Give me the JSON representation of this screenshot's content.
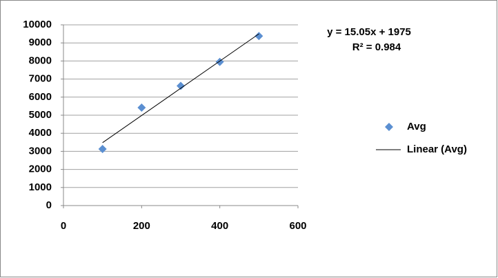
{
  "chart_data": {
    "type": "scatter",
    "annotations": [
      "y = 15.05x + 1975",
      "R² = 0.984"
    ],
    "series": [
      {
        "name": "Avg",
        "type": "scatter",
        "marker": "diamond",
        "color": "#5b8fd1",
        "x": [
          100,
          200,
          300,
          400,
          500
        ],
        "values": [
          3130,
          5420,
          6620,
          7950,
          9380
        ]
      },
      {
        "name": "Linear (Avg)",
        "type": "line",
        "color": "#000000",
        "x": [
          100,
          500
        ],
        "values": [
          3480,
          9500
        ]
      }
    ],
    "xlim": [
      0,
      600
    ],
    "xticks": [
      0,
      200,
      400,
      600
    ],
    "ylim": [
      0,
      10000
    ],
    "yticks": [
      0,
      1000,
      2000,
      3000,
      4000,
      5000,
      6000,
      7000,
      8000,
      9000,
      10000
    ],
    "grid": true,
    "legend": "right"
  }
}
